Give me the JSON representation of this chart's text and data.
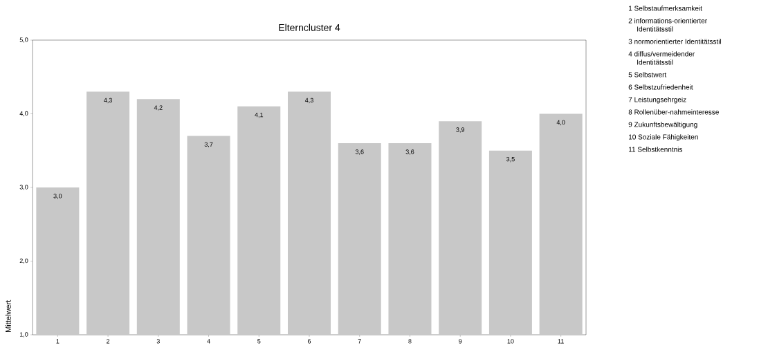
{
  "chart_data": {
    "type": "bar",
    "title": "Elterncluster 4",
    "ylabel": "Mittelwert",
    "categories": [
      "1",
      "2",
      "3",
      "4",
      "5",
      "6",
      "7",
      "8",
      "9",
      "10",
      "11"
    ],
    "values": [
      3.0,
      4.3,
      4.2,
      3.7,
      4.1,
      4.3,
      3.6,
      3.6,
      3.9,
      3.5,
      4.0
    ],
    "value_labels": [
      "3,0",
      "4,3",
      "4,2",
      "3,7",
      "4,1",
      "4,3",
      "3,6",
      "3,6",
      "3,9",
      "3,5",
      "4,0"
    ],
    "color": "#c8c8c8",
    "ylim": [
      1,
      5
    ],
    "yticks": [
      {
        "value": 1,
        "label": "1,0"
      },
      {
        "value": 2,
        "label": "2,0"
      },
      {
        "value": 3,
        "label": "3,0"
      },
      {
        "value": 4,
        "label": "4,0"
      },
      {
        "value": 5,
        "label": "5,0"
      }
    ],
    "grid": false,
    "annotations": [
      "1 Selbstaufmerksamkeit",
      "2 informations-orientierter Identitätsstil",
      "3 normorientierter Identitätsstil",
      "4 diffus/vermeidender Identitätsstil",
      "5 Selbstwert",
      "6 Selbstzufriedenheit",
      "7 Leistungsehrgeiz",
      "8 Rollenüber-nahmeinteresse",
      "9 Zukunftsbewältigung",
      "10 Soziale Fähigkeiten",
      "11 Selbstkenntnis"
    ]
  }
}
